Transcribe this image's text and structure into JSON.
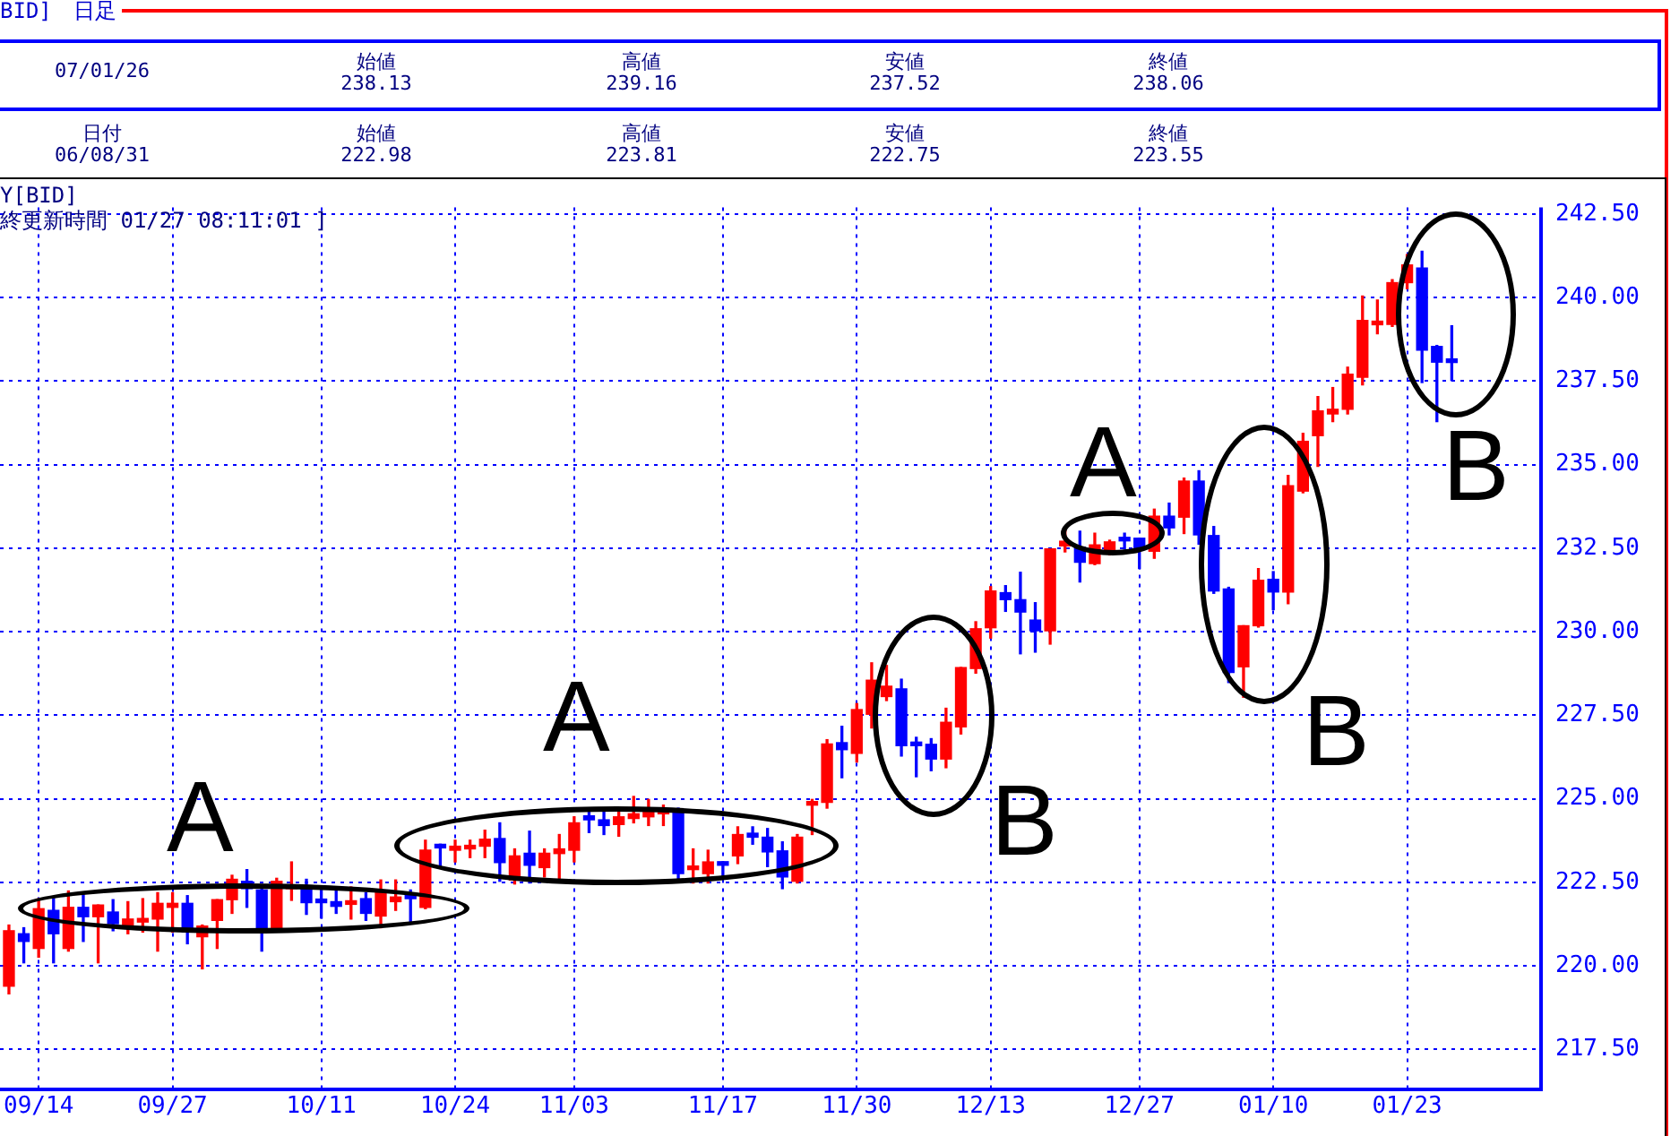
{
  "chart_data": {
    "type": "candlestick",
    "title": "BID]　日足",
    "categories": [
      null,
      null,
      "09/14",
      null,
      null,
      null,
      null,
      null,
      null,
      null,
      null,
      "09/27",
      null,
      null,
      null,
      null,
      null,
      null,
      null,
      null,
      null,
      "10/11",
      null,
      null,
      null,
      null,
      null,
      null,
      null,
      null,
      "10/24",
      null,
      null,
      null,
      null,
      null,
      null,
      null,
      "11/03",
      null,
      null,
      null,
      null,
      null,
      null,
      null,
      null,
      null,
      "11/17",
      null,
      null,
      null,
      null,
      null,
      null,
      null,
      null,
      "11/30",
      null,
      null,
      null,
      null,
      null,
      null,
      null,
      null,
      "12/13",
      null,
      null,
      null,
      null,
      null,
      null,
      null,
      null,
      null,
      "12/27",
      null,
      null,
      null,
      null,
      null,
      null,
      null,
      null,
      "01/10",
      null,
      null,
      null,
      null,
      null,
      null,
      null,
      null,
      "01/23",
      null,
      null,
      null
    ],
    "ohlc": [
      [
        219.39,
        221.22,
        219.16,
        221.05
      ],
      [
        220.96,
        221.14,
        220.09,
        220.73
      ],
      [
        220.52,
        222.01,
        220.26,
        221.71
      ],
      [
        221.66,
        222.06,
        220.09,
        220.96
      ],
      [
        220.52,
        222.24,
        220.44,
        221.75
      ],
      [
        221.75,
        222.19,
        220.73,
        221.47
      ],
      [
        221.47,
        221.82,
        220.09,
        221.82
      ],
      [
        221.61,
        221.98,
        221.05,
        221.26
      ],
      [
        221.22,
        221.92,
        220.96,
        221.4
      ],
      [
        221.31,
        222.01,
        221.01,
        221.4
      ],
      [
        221.4,
        222.19,
        220.44,
        221.87
      ],
      [
        221.75,
        222.19,
        221.01,
        221.87
      ],
      [
        221.87,
        222.1,
        220.66,
        221.01
      ],
      [
        220.87,
        221.22,
        219.91,
        221.19
      ],
      [
        221.36,
        221.98,
        220.52,
        221.98
      ],
      [
        221.98,
        222.71,
        221.57,
        222.59
      ],
      [
        222.53,
        222.88,
        221.75,
        222.31
      ],
      [
        222.27,
        222.31,
        220.44,
        221.01
      ],
      [
        221.08,
        222.62,
        221.05,
        222.53
      ],
      [
        222.31,
        223.11,
        221.96,
        222.4
      ],
      [
        222.4,
        222.59,
        221.54,
        221.89
      ],
      [
        221.92,
        222.36,
        221.43,
        221.89
      ],
      [
        221.92,
        222.36,
        221.57,
        221.78
      ],
      [
        221.84,
        222.36,
        221.4,
        221.92
      ],
      [
        222.01,
        222.19,
        221.36,
        221.57
      ],
      [
        221.49,
        222.57,
        221.14,
        222.24
      ],
      [
        221.92,
        222.57,
        221.66,
        222.06
      ],
      [
        222.1,
        222.27,
        221.31,
        222.01
      ],
      [
        221.75,
        223.76,
        221.71,
        223.46
      ],
      [
        223.59,
        223.64,
        222.94,
        223.53
      ],
      [
        223.46,
        223.76,
        223.11,
        223.58
      ],
      [
        223.5,
        223.76,
        223.24,
        223.58
      ],
      [
        223.58,
        224.06,
        223.24,
        223.79
      ],
      [
        223.81,
        224.28,
        222.53,
        223.09
      ],
      [
        222.57,
        223.5,
        222.45,
        223.29
      ],
      [
        223.37,
        224.03,
        222.48,
        223.01
      ],
      [
        222.94,
        223.5,
        222.66,
        223.37
      ],
      [
        223.36,
        223.93,
        222.53,
        223.5
      ],
      [
        223.46,
        224.46,
        223.11,
        224.28
      ],
      [
        224.49,
        224.63,
        223.99,
        224.37
      ],
      [
        224.37,
        224.63,
        223.93,
        224.2
      ],
      [
        224.23,
        224.63,
        223.88,
        224.46
      ],
      [
        224.41,
        225.07,
        224.28,
        224.55
      ],
      [
        224.46,
        224.98,
        224.2,
        224.67
      ],
      [
        224.55,
        224.81,
        224.2,
        224.6
      ],
      [
        224.67,
        224.72,
        222.53,
        222.76
      ],
      [
        222.88,
        223.5,
        222.48,
        222.94
      ],
      [
        222.76,
        223.46,
        222.48,
        223.11
      ],
      [
        223.11,
        223.11,
        222.66,
        223.01
      ],
      [
        223.29,
        224.16,
        223.06,
        223.93
      ],
      [
        223.97,
        224.16,
        223.64,
        223.85
      ],
      [
        223.85,
        224.11,
        222.97,
        223.41
      ],
      [
        223.44,
        223.71,
        222.31,
        222.66
      ],
      [
        222.53,
        223.93,
        222.48,
        223.85
      ],
      [
        224.81,
        224.98,
        223.93,
        224.89
      ],
      [
        224.89,
        226.77,
        224.72,
        226.64
      ],
      [
        226.68,
        227.17,
        225.63,
        226.47
      ],
      [
        226.36,
        227.85,
        226.1,
        227.67
      ],
      [
        227.53,
        229.07,
        227.12,
        228.55
      ],
      [
        228.06,
        228.99,
        227.94,
        228.37
      ],
      [
        228.29,
        228.58,
        226.28,
        226.59
      ],
      [
        226.63,
        226.84,
        225.66,
        226.59
      ],
      [
        226.63,
        226.8,
        225.84,
        226.19
      ],
      [
        226.19,
        227.71,
        225.93,
        227.29
      ],
      [
        227.15,
        228.93,
        226.94,
        228.93
      ],
      [
        228.9,
        230.3,
        228.76,
        230.09
      ],
      [
        230.12,
        231.35,
        229.81,
        231.22
      ],
      [
        231.17,
        231.38,
        230.61,
        230.96
      ],
      [
        230.96,
        231.78,
        229.34,
        230.59
      ],
      [
        230.35,
        230.87,
        229.39,
        230.03
      ],
      [
        230.03,
        232.48,
        229.63,
        232.48
      ],
      [
        232.57,
        233.09,
        232.39,
        232.71
      ],
      [
        232.53,
        233.01,
        231.49,
        232.08
      ],
      [
        232.04,
        232.95,
        232.01,
        232.6
      ],
      [
        232.34,
        232.74,
        232.3,
        232.69
      ],
      [
        232.76,
        232.95,
        232.48,
        232.72
      ],
      [
        232.8,
        232.8,
        231.89,
        232.47
      ],
      [
        232.41,
        233.67,
        232.2,
        233.46
      ],
      [
        233.46,
        233.85,
        232.9,
        233.11
      ],
      [
        233.43,
        234.6,
        232.94,
        234.51
      ],
      [
        234.51,
        234.82,
        232.62,
        232.9
      ],
      [
        232.88,
        233.15,
        231.15,
        231.22
      ],
      [
        231.28,
        231.33,
        228.48,
        228.78
      ],
      [
        228.95,
        230.18,
        228.04,
        230.18
      ],
      [
        230.18,
        231.89,
        230.14,
        231.54
      ],
      [
        231.57,
        231.8,
        230.66,
        231.19
      ],
      [
        231.19,
        234.68,
        230.84,
        234.37
      ],
      [
        234.21,
        235.94,
        234.16,
        235.7
      ],
      [
        235.87,
        237.04,
        234.95,
        236.61
      ],
      [
        236.52,
        237.31,
        236.29,
        236.66
      ],
      [
        236.66,
        237.92,
        236.52,
        237.71
      ],
      [
        237.62,
        240.05,
        237.39,
        239.32
      ],
      [
        239.19,
        239.93,
        238.92,
        239.27
      ],
      [
        239.2,
        240.54,
        239.14,
        240.45
      ],
      [
        240.45,
        241.29,
        240.27,
        240.98
      ],
      [
        240.89,
        241.39,
        237.46,
        238.43
      ],
      [
        238.54,
        238.57,
        236.29,
        238.07
      ],
      [
        238.13,
        239.16,
        237.52,
        238.06
      ]
    ],
    "colors": [
      "#ff0000",
      "#0000ff",
      "#ff0000",
      "#0000ff",
      "#ff0000",
      "#0000ff",
      "#ff0000",
      "#0000ff",
      "#ff0000",
      "#ff0000",
      "#ff0000",
      "#ff0000",
      "#0000ff",
      "#ff0000",
      "#ff0000",
      "#ff0000",
      "#0000ff",
      "#0000ff",
      "#ff0000",
      "#ff0000",
      "#0000ff",
      "#0000ff",
      "#0000ff",
      "#ff0000",
      "#0000ff",
      "#ff0000",
      "#ff0000",
      "#0000ff",
      "#ff0000",
      "#0000ff",
      "#ff0000",
      "#ff0000",
      "#ff0000",
      "#0000ff",
      "#ff0000",
      "#0000ff",
      "#ff0000",
      "#ff0000",
      "#ff0000",
      "#0000ff",
      "#0000ff",
      "#ff0000",
      "#ff0000",
      "#ff0000",
      "#ff0000",
      "#0000ff",
      "#ff0000",
      "#ff0000",
      "#0000ff",
      "#ff0000",
      "#0000ff",
      "#0000ff",
      "#0000ff",
      "#ff0000",
      "#ff0000",
      "#ff0000",
      "#0000ff",
      "#ff0000",
      "#ff0000",
      "#ff0000",
      "#0000ff",
      "#0000ff",
      "#0000ff",
      "#ff0000",
      "#ff0000",
      "#ff0000",
      "#ff0000",
      "#0000ff",
      "#0000ff",
      "#0000ff",
      "#ff0000",
      "#ff0000",
      "#0000ff",
      "#ff0000",
      "#ff0000",
      "#0000ff",
      "#0000ff",
      "#ff0000",
      "#0000ff",
      "#ff0000",
      "#0000ff",
      "#0000ff",
      "#0000ff",
      "#ff0000",
      "#ff0000",
      "#0000ff",
      "#ff0000",
      "#ff0000",
      "#ff0000",
      "#ff0000",
      "#ff0000",
      "#ff0000",
      "#ff0000",
      "#ff0000",
      "#ff0000",
      "#0000ff",
      "#0000ff",
      "#0000ff"
    ],
    "ylim": [
      216.3,
      242.7
    ],
    "yticks": [
      {
        "value": 217.5,
        "label": "217.50"
      },
      {
        "value": 220,
        "label": "220.00"
      },
      {
        "value": 222.5,
        "label": "222.50"
      },
      {
        "value": 225,
        "label": "225.00"
      },
      {
        "value": 227.5,
        "label": "227.50"
      },
      {
        "value": 230,
        "label": "230.00"
      },
      {
        "value": 232.5,
        "label": "232.50"
      },
      {
        "value": 235,
        "label": "235.00"
      },
      {
        "value": 237.5,
        "label": "237.50"
      },
      {
        "value": 240,
        "label": "240.00"
      },
      {
        "value": 242.5,
        "label": "242.50"
      }
    ],
    "grid": true,
    "annotations": [
      "07/01/26",
      "始値",
      "238.13",
      "高値",
      "239.16",
      "安値",
      "237.52",
      "終値",
      "238.06",
      "日付",
      "06/08/31",
      "始値",
      "222.98",
      "高値",
      "223.81",
      "安値",
      "222.75",
      "終値",
      "223.55",
      "Y[BID]",
      "終更新時間 01/27 08:11:01 ]",
      "A",
      "A",
      "A",
      "B",
      "B",
      "B"
    ]
  }
}
